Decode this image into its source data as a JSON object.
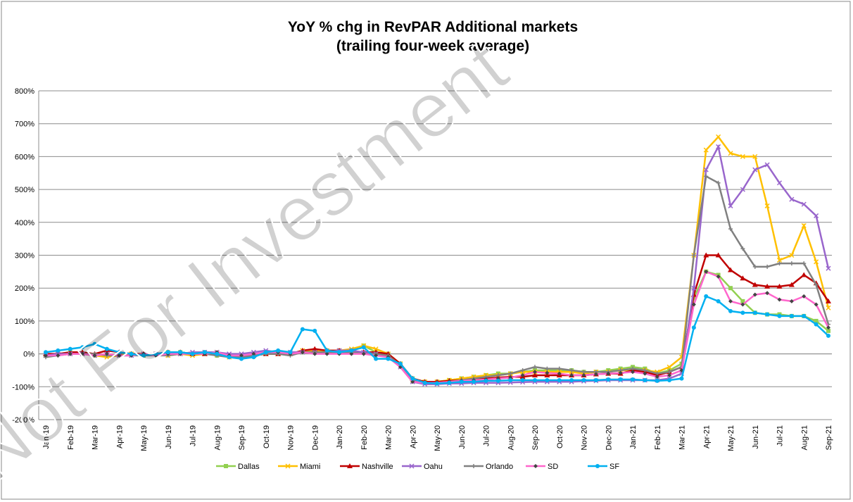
{
  "chart_data": {
    "type": "line",
    "title": "YoY % chg in RevPAR Additional markets",
    "subtitle": "(trailing four-week average)",
    "watermark": "Not For Investment",
    "categories": [
      "Jan-19",
      null,
      "Feb-19",
      null,
      "Mar-19",
      null,
      "Apr-19",
      null,
      "May-19",
      null,
      "Jun-19",
      null,
      "Jul-19",
      null,
      "Aug-19",
      null,
      "Sep-19",
      null,
      "Oct-19",
      null,
      "Nov-19",
      null,
      "Dec-19",
      null,
      "Jan-20",
      null,
      "Feb-20",
      null,
      "Mar-20",
      null,
      "Apr-20",
      null,
      "May-20",
      null,
      "Jun-20",
      null,
      "Jul-20",
      null,
      "Aug-20",
      null,
      "Sep-20",
      null,
      "Oct-20",
      null,
      "Nov-20",
      null,
      "Dec-20",
      null,
      "Jan-21",
      null,
      "Feb-21",
      null,
      "Mar-21",
      null,
      "Apr-21",
      null,
      "May-21",
      null,
      "Jun-21",
      null,
      "Jul-21",
      null,
      "Aug-21",
      null,
      "Sep-21"
    ],
    "series": [
      {
        "name": "Dallas",
        "color": "#92d050",
        "marker": "square",
        "values": [
          -5,
          0,
          5,
          0,
          -5,
          -5,
          0,
          0,
          -5,
          0,
          5,
          5,
          0,
          5,
          -5,
          -5,
          -10,
          -5,
          0,
          0,
          0,
          5,
          5,
          5,
          10,
          10,
          25,
          5,
          0,
          -30,
          -75,
          -85,
          -85,
          -80,
          -75,
          -70,
          -65,
          -60,
          -60,
          -55,
          -50,
          -50,
          -50,
          -50,
          -55,
          -55,
          -50,
          -45,
          -40,
          -45,
          -60,
          -50,
          -30,
          170,
          250,
          240,
          200,
          160,
          125,
          120,
          120,
          115,
          115,
          100,
          70
        ]
      },
      {
        "name": "Miami",
        "color": "#ffc000",
        "marker": "x",
        "values": [
          -5,
          0,
          0,
          0,
          -5,
          -10,
          -5,
          0,
          0,
          0,
          -5,
          0,
          -5,
          0,
          5,
          -10,
          -10,
          -5,
          0,
          0,
          0,
          10,
          10,
          10,
          10,
          15,
          25,
          15,
          0,
          -30,
          -80,
          -85,
          -85,
          -80,
          -75,
          -70,
          -65,
          -65,
          -60,
          -55,
          -55,
          -55,
          -55,
          -55,
          -60,
          -55,
          -55,
          -50,
          -50,
          -50,
          -55,
          -40,
          -10,
          300,
          620,
          660,
          610,
          600,
          600,
          450,
          285,
          300,
          390,
          280,
          140
        ]
      },
      {
        "name": "Nashville",
        "color": "#c00000",
        "marker": "triangle",
        "values": [
          0,
          0,
          5,
          5,
          0,
          10,
          5,
          0,
          0,
          0,
          5,
          5,
          0,
          0,
          0,
          -5,
          -10,
          -5,
          0,
          0,
          0,
          10,
          15,
          10,
          10,
          5,
          5,
          5,
          0,
          -30,
          -75,
          -85,
          -85,
          -82,
          -80,
          -78,
          -75,
          -72,
          -70,
          -70,
          -65,
          -65,
          -65,
          -65,
          -65,
          -62,
          -60,
          -60,
          -50,
          -55,
          -65,
          -55,
          -40,
          180,
          300,
          300,
          255,
          230,
          210,
          205,
          205,
          210,
          240,
          215,
          160
        ]
      },
      {
        "name": "Oahu",
        "color": "#9966cc",
        "marker": "x",
        "values": [
          -5,
          0,
          0,
          0,
          -5,
          0,
          -5,
          -5,
          0,
          0,
          0,
          0,
          5,
          5,
          5,
          0,
          0,
          5,
          10,
          5,
          5,
          5,
          5,
          5,
          10,
          10,
          5,
          0,
          -10,
          -40,
          -85,
          -92,
          -92,
          -90,
          -90,
          -88,
          -88,
          -88,
          -87,
          -86,
          -85,
          -85,
          -85,
          -85,
          -83,
          -82,
          -80,
          -80,
          -80,
          -80,
          -80,
          -75,
          -60,
          200,
          560,
          630,
          450,
          500,
          560,
          575,
          520,
          470,
          455,
          420,
          260
        ]
      },
      {
        "name": "Orlando",
        "color": "#808080",
        "marker": "plus",
        "values": [
          -10,
          -5,
          0,
          0,
          0,
          -5,
          -5,
          -5,
          -5,
          -5,
          -5,
          0,
          0,
          0,
          -5,
          -10,
          -10,
          -5,
          0,
          0,
          -5,
          5,
          5,
          5,
          5,
          5,
          0,
          0,
          -5,
          -35,
          -80,
          -88,
          -88,
          -85,
          -80,
          -75,
          -70,
          -65,
          -60,
          -50,
          -40,
          -45,
          -45,
          -50,
          -55,
          -55,
          -55,
          -50,
          -45,
          -50,
          -60,
          -55,
          -40,
          300,
          540,
          520,
          380,
          320,
          265,
          265,
          275,
          275,
          275,
          210,
          90
        ]
      },
      {
        "name": "SD",
        "color": "#ff66cc",
        "marker": "diamond",
        "values": [
          -5,
          -5,
          0,
          0,
          -5,
          0,
          -5,
          -5,
          0,
          -5,
          0,
          0,
          0,
          0,
          5,
          -5,
          -5,
          0,
          5,
          5,
          0,
          5,
          0,
          0,
          0,
          0,
          0,
          -5,
          -10,
          -40,
          -85,
          -88,
          -88,
          -85,
          -82,
          -80,
          -78,
          -75,
          -72,
          -65,
          -55,
          -58,
          -60,
          -65,
          -65,
          -62,
          -60,
          -58,
          -55,
          -60,
          -70,
          -65,
          -50,
          150,
          250,
          235,
          160,
          150,
          180,
          185,
          165,
          160,
          175,
          150,
          80
        ]
      },
      {
        "name": "SF",
        "color": "#00b0f0",
        "marker": "circle",
        "values": [
          5,
          10,
          15,
          20,
          30,
          15,
          5,
          0,
          -5,
          0,
          5,
          5,
          0,
          5,
          0,
          -10,
          -15,
          -10,
          5,
          10,
          5,
          75,
          70,
          10,
          5,
          10,
          20,
          -15,
          -15,
          -30,
          -75,
          -88,
          -90,
          -88,
          -85,
          -85,
          -82,
          -82,
          -80,
          -80,
          -80,
          -80,
          -80,
          -80,
          -80,
          -80,
          -78,
          -78,
          -78,
          -80,
          -82,
          -80,
          -75,
          80,
          175,
          160,
          130,
          125,
          125,
          120,
          115,
          115,
          115,
          90,
          55
        ]
      }
    ],
    "ylim": [
      -200,
      800
    ],
    "yticks": [
      {
        "value": -200,
        "label": "-200%"
      },
      {
        "value": -100,
        "label": "-100%"
      },
      {
        "value": 0,
        "label": "0%"
      },
      {
        "value": 100,
        "label": "100%"
      },
      {
        "value": 200,
        "label": "200%"
      },
      {
        "value": 300,
        "label": "300%"
      },
      {
        "value": 400,
        "label": "400%"
      },
      {
        "value": 500,
        "label": "500%"
      },
      {
        "value": 600,
        "label": "600%"
      },
      {
        "value": 700,
        "label": "700%"
      },
      {
        "value": 800,
        "label": "800%"
      }
    ],
    "grid": true,
    "legend": "bottom"
  }
}
